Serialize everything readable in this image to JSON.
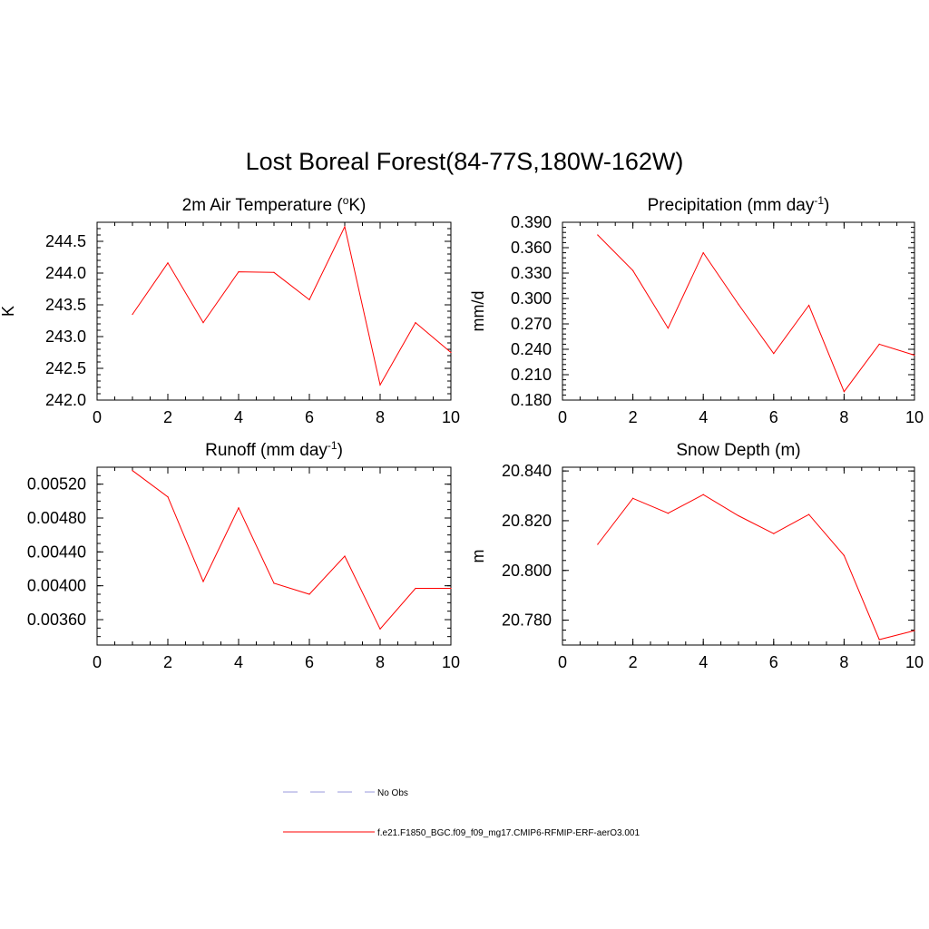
{
  "title": "Lost Boreal Forest(84-77S,180W-162W)",
  "colors": {
    "model_line": "#ff0000",
    "obs_line": "#9999dd",
    "axis": "#000000"
  },
  "legend": [
    {
      "label": "No Obs",
      "style": "dashed",
      "color": "#9999dd"
    },
    {
      "label": "f.e21.F1850_BGC.f09_f09_mg17.CMIP6-RFMIP-ERF-aerO3.001",
      "style": "solid",
      "color": "#ff0000"
    }
  ],
  "chart_data": [
    {
      "type": "line",
      "title": "2m Air Temperature (°K)",
      "title_parts": {
        "pre": "2m Air Temperature (",
        "sup": "o",
        "post": "K)"
      },
      "ylabel": "K",
      "xlim": [
        0,
        10
      ],
      "ylim": [
        242.0,
        244.8
      ],
      "xticks": [
        0,
        2,
        4,
        6,
        8,
        10
      ],
      "xminor_step": 0.5,
      "yticks": [
        242.0,
        242.5,
        243.0,
        243.5,
        244.0,
        244.5
      ],
      "ytick_labels": [
        "242.0",
        "242.5",
        "243.0",
        "243.5",
        "244.0",
        "244.5"
      ],
      "yminor_step": 0.1,
      "x": [
        1,
        2,
        3,
        4,
        5,
        6,
        7,
        8,
        9,
        10
      ],
      "series": [
        {
          "values": [
            243.35,
            244.16,
            243.22,
            244.02,
            244.01,
            243.58,
            244.73,
            242.24,
            243.22,
            242.75
          ]
        }
      ]
    },
    {
      "type": "line",
      "title": "Precipitation (mm day-1)",
      "title_parts": {
        "pre": "Precipitation (mm day",
        "sup": "-1",
        "post": ")"
      },
      "ylabel": "mm/d",
      "xlim": [
        0,
        10
      ],
      "ylim": [
        0.18,
        0.39
      ],
      "xticks": [
        0,
        2,
        4,
        6,
        8,
        10
      ],
      "xminor_step": 0.5,
      "yticks": [
        0.18,
        0.21,
        0.24,
        0.27,
        0.3,
        0.33,
        0.36,
        0.39
      ],
      "ytick_labels": [
        "0.180",
        "0.210",
        "0.240",
        "0.270",
        "0.300",
        "0.330",
        "0.360",
        "0.390"
      ],
      "yminor_step": 0.006,
      "x": [
        1,
        2,
        3,
        4,
        5,
        6,
        7,
        8,
        9,
        10
      ],
      "series": [
        {
          "values": [
            0.375,
            0.333,
            0.265,
            0.354,
            0.293,
            0.235,
            0.292,
            0.19,
            0.246,
            0.233
          ]
        }
      ]
    },
    {
      "type": "line",
      "title": "Runoff (mm day-1)",
      "title_parts": {
        "pre": "Runoff (mm day",
        "sup": "-1",
        "post": ")"
      },
      "ylabel": "",
      "xlim": [
        0,
        10
      ],
      "ylim": [
        0.0033,
        0.0054
      ],
      "xticks": [
        0,
        2,
        4,
        6,
        8,
        10
      ],
      "xminor_step": 0.5,
      "yticks": [
        0.0036,
        0.004,
        0.0044,
        0.0048,
        0.0052
      ],
      "ytick_labels": [
        "0.00360",
        "0.00400",
        "0.00440",
        "0.00480",
        "0.00520"
      ],
      "yminor_step": 0.0001,
      "x": [
        1,
        2,
        3,
        4,
        5,
        6,
        7,
        8,
        9,
        10
      ],
      "series": [
        {
          "values": [
            0.00536,
            0.00505,
            0.00405,
            0.00492,
            0.00403,
            0.0039,
            0.00435,
            0.00349,
            0.00397,
            0.00397
          ]
        }
      ]
    },
    {
      "type": "line",
      "title": "Snow Depth (m)",
      "title_parts": {
        "pre": "Snow Depth (m)",
        "sup": "",
        "post": ""
      },
      "ylabel": "m",
      "xlim": [
        0,
        10
      ],
      "ylim": [
        20.77,
        20.8415
      ],
      "xticks": [
        0,
        2,
        4,
        6,
        8,
        10
      ],
      "xminor_step": 0.5,
      "yticks": [
        20.78,
        20.8,
        20.82,
        20.84
      ],
      "ytick_labels": [
        "20.780",
        "20.800",
        "20.820",
        "20.840"
      ],
      "yminor_step": 0.004,
      "x": [
        1,
        2,
        3,
        4,
        5,
        6,
        7,
        8,
        9,
        10
      ],
      "series": [
        {
          "values": [
            20.8105,
            20.829,
            20.823,
            20.8305,
            20.822,
            20.8148,
            20.8225,
            20.806,
            20.7722,
            20.7758
          ]
        }
      ]
    }
  ]
}
